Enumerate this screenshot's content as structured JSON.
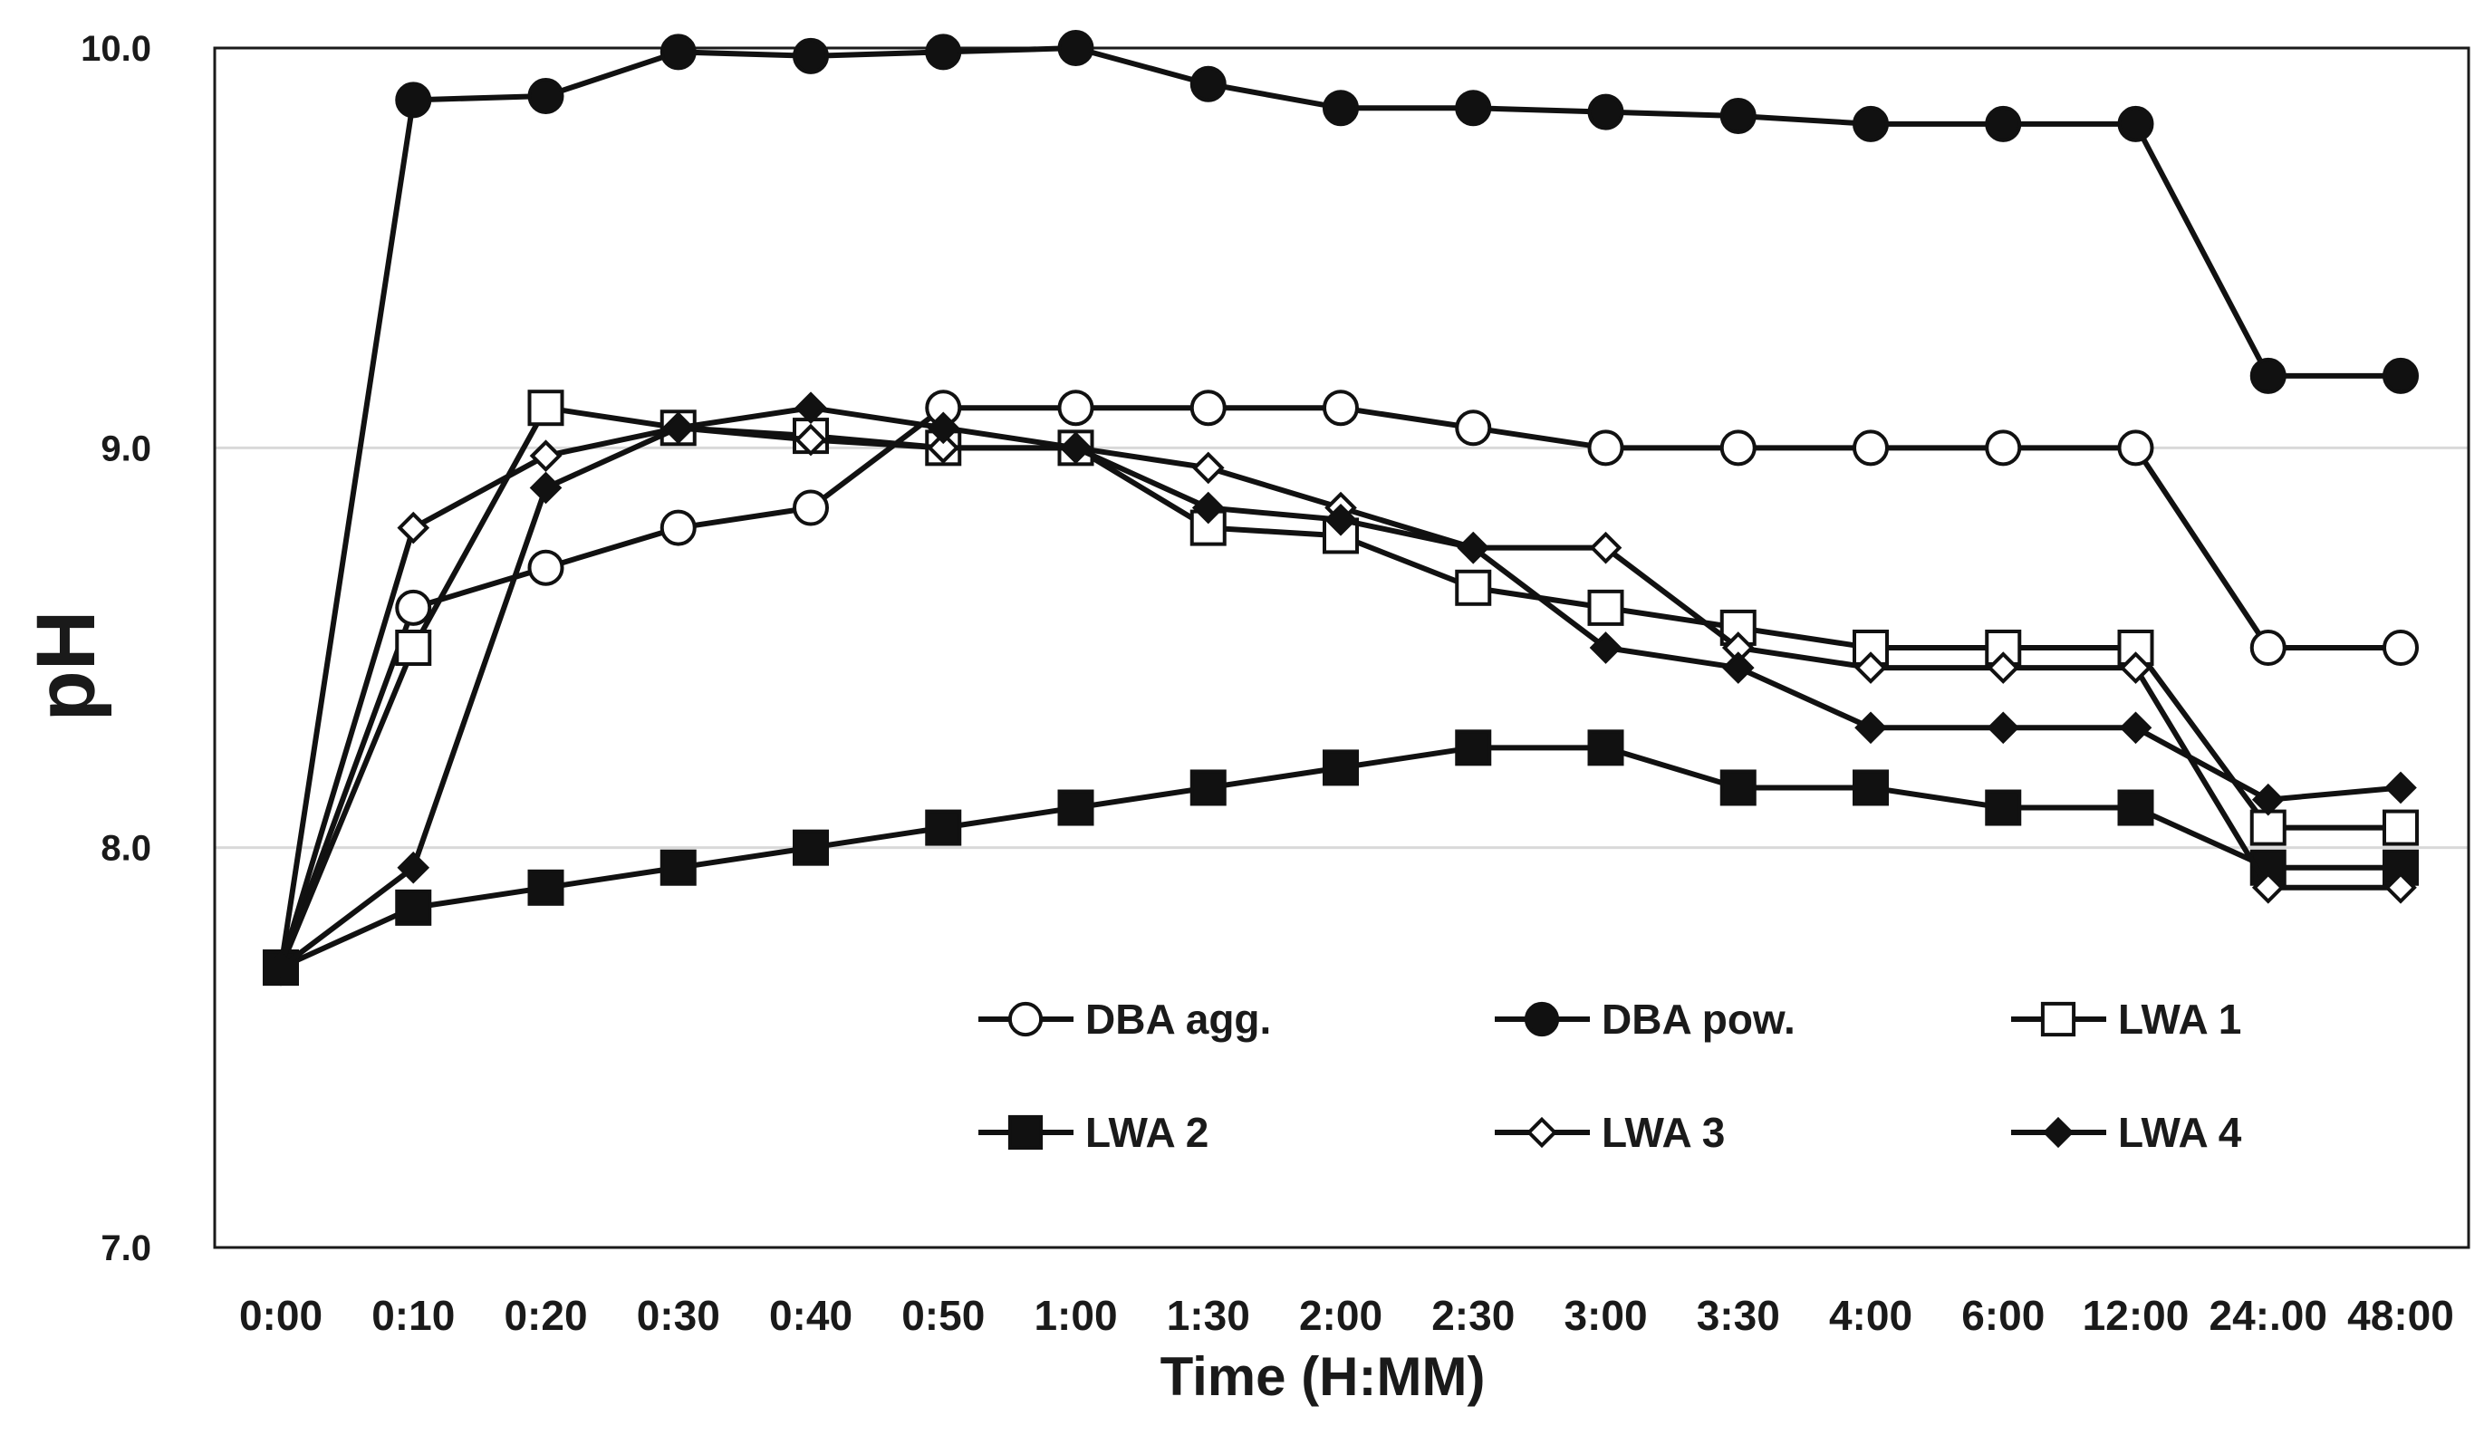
{
  "chart_data": {
    "type": "line",
    "title": "",
    "xlabel": "Time (H:MM)",
    "ylabel": "pH",
    "categories": [
      "0:00",
      "0:10",
      "0:20",
      "0:30",
      "0:40",
      "0:50",
      "1:00",
      "1:30",
      "2:00",
      "2:30",
      "3:00",
      "3:30",
      "4:00",
      "6:00",
      "12:00",
      "24:.00",
      "48:00"
    ],
    "ylim": [
      7.0,
      10.0
    ],
    "yticks": [
      "7.0",
      "8.0",
      "9.0",
      "10.0"
    ],
    "grid": true,
    "legend_position": "lower-center",
    "series": [
      {
        "name": "DBA agg.",
        "marker": "circle",
        "filled": false,
        "values": [
          7.7,
          8.6,
          8.7,
          8.8,
          8.85,
          9.1,
          9.1,
          9.1,
          9.1,
          9.05,
          9.0,
          9.0,
          9.0,
          9.0,
          9.0,
          8.5,
          8.5
        ]
      },
      {
        "name": "DBA pow.",
        "marker": "circle",
        "filled": true,
        "values": [
          7.7,
          9.87,
          9.88,
          9.99,
          9.98,
          9.99,
          10.0,
          9.91,
          9.85,
          9.85,
          9.84,
          9.83,
          9.81,
          9.81,
          9.81,
          9.18,
          9.18
        ]
      },
      {
        "name": "LWA 1",
        "marker": "square",
        "filled": false,
        "values": [
          7.7,
          8.5,
          9.1,
          9.05,
          9.03,
          9.0,
          9.0,
          8.8,
          8.78,
          8.65,
          8.6,
          8.55,
          8.5,
          8.5,
          8.5,
          8.05,
          8.05
        ]
      },
      {
        "name": "LWA 2",
        "marker": "square",
        "filled": true,
        "values": [
          7.7,
          7.85,
          7.9,
          7.95,
          8.0,
          8.05,
          8.1,
          8.15,
          8.2,
          8.25,
          8.25,
          8.15,
          8.15,
          8.1,
          8.1,
          7.95,
          7.95
        ]
      },
      {
        "name": "LWA 3",
        "marker": "diamond",
        "filled": false,
        "values": [
          7.7,
          8.8,
          8.98,
          9.05,
          9.02,
          9.0,
          9.0,
          8.95,
          8.85,
          8.75,
          8.75,
          8.5,
          8.45,
          8.45,
          8.45,
          7.9,
          7.9
        ]
      },
      {
        "name": "LWA 4",
        "marker": "diamond",
        "filled": true,
        "values": [
          7.7,
          7.95,
          8.9,
          9.05,
          9.1,
          9.05,
          9.0,
          8.85,
          8.82,
          8.75,
          8.5,
          8.45,
          8.3,
          8.3,
          8.3,
          8.12,
          8.15
        ]
      }
    ]
  },
  "colors": {
    "line": "#111111",
    "marker_fill_open": "#ffffff",
    "marker_fill_solid": "#111111",
    "gridline": "#d9d9d9",
    "axis": "#1a1a1a",
    "background": "#ffffff"
  }
}
